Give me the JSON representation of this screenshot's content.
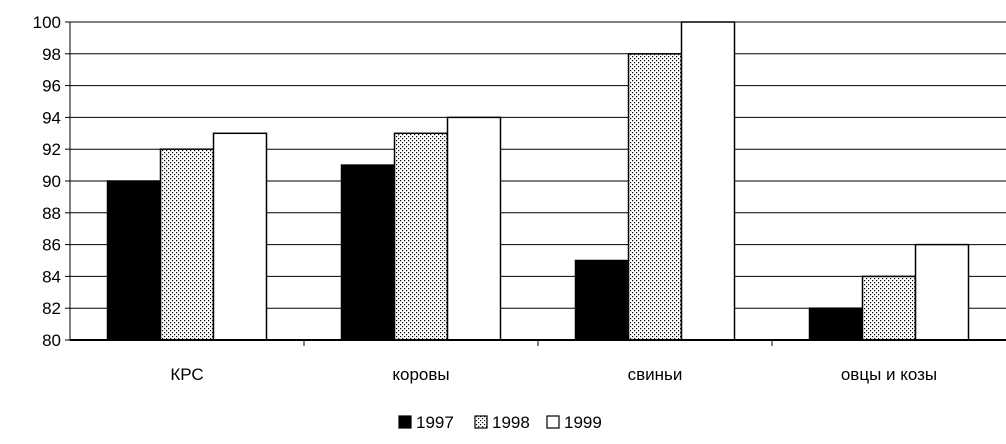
{
  "chart_data": {
    "type": "bar",
    "title": "",
    "xlabel": "",
    "ylabel": "",
    "categories": [
      "КРС",
      "коровы",
      "свиньи",
      "овцы и козы"
    ],
    "series": [
      {
        "name": "1997",
        "values": [
          90,
          91,
          85,
          82
        ],
        "fill": "solid-black"
      },
      {
        "name": "1998",
        "values": [
          92,
          93,
          98,
          84
        ],
        "fill": "dotted"
      },
      {
        "name": "1999",
        "values": [
          93,
          94,
          100,
          86
        ],
        "fill": "white"
      }
    ],
    "ylim": [
      80,
      100
    ],
    "yticks": [
      80,
      82,
      84,
      86,
      88,
      90,
      92,
      94,
      96,
      98,
      100
    ],
    "grid": true,
    "legend_position": "bottom-center",
    "colors": {
      "bar_stroke": "#000000",
      "grid": "#000000",
      "background": "#ffffff"
    }
  }
}
